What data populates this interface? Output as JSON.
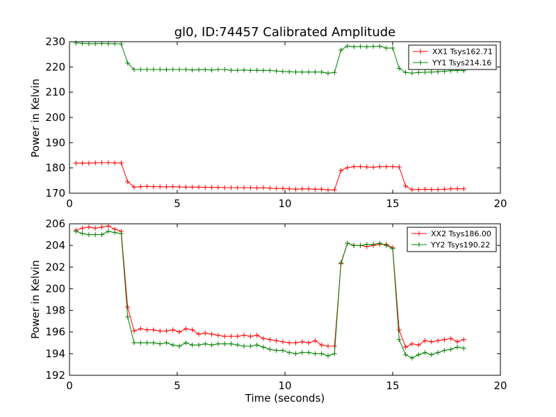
{
  "chart_data": [
    {
      "type": "line",
      "title": "gl0, ID:74457 Calibrated Amplitude",
      "xlabel": "",
      "ylabel": "Power in Kelvin",
      "xlim": [
        0,
        20
      ],
      "ylim": [
        170,
        230
      ],
      "xticks": [
        "0",
        "5",
        "10",
        "15",
        "20"
      ],
      "yticks": [
        "170",
        "180",
        "190",
        "200",
        "210",
        "220",
        "230"
      ],
      "grid": false,
      "legend_position": "top-right",
      "x": [
        0.3,
        0.6,
        0.9,
        1.2,
        1.5,
        1.8,
        2.1,
        2.4,
        2.7,
        3.0,
        3.3,
        3.6,
        3.9,
        4.2,
        4.5,
        4.8,
        5.1,
        5.4,
        5.7,
        6.0,
        6.3,
        6.6,
        6.9,
        7.2,
        7.5,
        7.8,
        8.1,
        8.4,
        8.7,
        9.0,
        9.3,
        9.6,
        9.9,
        10.2,
        10.5,
        10.8,
        11.1,
        11.4,
        11.7,
        12.0,
        12.3,
        12.6,
        12.9,
        13.2,
        13.5,
        13.8,
        14.1,
        14.4,
        14.7,
        15.0,
        15.3,
        15.6,
        15.9,
        16.2,
        16.5,
        16.8,
        17.1,
        17.4,
        17.7,
        18.0,
        18.3
      ],
      "series": [
        {
          "name": "XX1 Tsys162.71",
          "color": "#ff0000",
          "values": [
            181.9,
            181.9,
            181.9,
            182.0,
            182.1,
            182.1,
            182.0,
            182.0,
            174.5,
            172.4,
            172.6,
            172.7,
            172.6,
            172.6,
            172.5,
            172.6,
            172.5,
            172.4,
            172.4,
            172.4,
            172.3,
            172.3,
            172.3,
            172.2,
            172.2,
            172.2,
            172.2,
            172.2,
            172.1,
            172.2,
            172.0,
            171.9,
            171.9,
            171.7,
            171.6,
            171.7,
            171.7,
            171.6,
            171.6,
            171.3,
            171.3,
            179.0,
            180.1,
            180.5,
            180.5,
            180.4,
            180.3,
            180.5,
            180.5,
            180.5,
            180.4,
            172.8,
            171.4,
            171.5,
            171.6,
            171.5,
            171.5,
            171.6,
            171.7,
            171.8,
            171.7
          ]
        },
        {
          "name": "YY1 Tsys214.16",
          "color": "#008000",
          "values": [
            229.5,
            229.3,
            229.2,
            229.2,
            229.3,
            229.2,
            229.2,
            229.1,
            221.5,
            219.0,
            219.0,
            219.0,
            219.0,
            219.0,
            218.9,
            219.0,
            219.0,
            219.0,
            218.8,
            218.9,
            218.9,
            218.8,
            219.0,
            219.0,
            218.7,
            218.7,
            218.8,
            218.6,
            218.7,
            218.6,
            218.6,
            218.4,
            218.2,
            218.1,
            218.0,
            218.0,
            218.0,
            218.0,
            218.0,
            217.5,
            217.8,
            226.7,
            228.3,
            228.0,
            228.1,
            228.0,
            228.1,
            228.2,
            227.5,
            227.5,
            219.5,
            217.8,
            217.6,
            217.8,
            217.9,
            218.0,
            218.1,
            218.3,
            218.5,
            218.6,
            218.5
          ]
        }
      ]
    },
    {
      "type": "line",
      "title": "",
      "xlabel": "Time (seconds)",
      "ylabel": "Power in Kelvin",
      "xlim": [
        0,
        20
      ],
      "ylim": [
        192,
        206
      ],
      "xticks": [
        "0",
        "5",
        "10",
        "15",
        "20"
      ],
      "yticks": [
        "192",
        "194",
        "196",
        "198",
        "200",
        "202",
        "204",
        "206"
      ],
      "grid": false,
      "legend_position": "top-right",
      "x": [
        0.3,
        0.6,
        0.9,
        1.2,
        1.5,
        1.8,
        2.1,
        2.4,
        2.7,
        3.0,
        3.3,
        3.6,
        3.9,
        4.2,
        4.5,
        4.8,
        5.1,
        5.4,
        5.7,
        6.0,
        6.3,
        6.6,
        6.9,
        7.2,
        7.5,
        7.8,
        8.1,
        8.4,
        8.7,
        9.0,
        9.3,
        9.6,
        9.9,
        10.2,
        10.5,
        10.8,
        11.1,
        11.4,
        11.7,
        12.0,
        12.3,
        12.6,
        12.9,
        13.2,
        13.5,
        13.8,
        14.1,
        14.4,
        14.7,
        15.0,
        15.3,
        15.6,
        15.9,
        16.2,
        16.5,
        16.8,
        17.1,
        17.4,
        17.7,
        18.0,
        18.3
      ],
      "series": [
        {
          "name": "XX2 Tsys186.00",
          "color": "#ff0000",
          "values": [
            205.4,
            205.6,
            205.7,
            205.6,
            205.7,
            205.8,
            205.5,
            205.3,
            198.3,
            196.1,
            196.3,
            196.2,
            196.2,
            196.1,
            196.1,
            196.2,
            196.0,
            196.3,
            196.2,
            195.8,
            195.9,
            195.8,
            195.7,
            195.6,
            195.6,
            195.6,
            195.7,
            195.6,
            195.7,
            195.4,
            195.3,
            195.2,
            195.1,
            195.0,
            195.0,
            195.1,
            195.0,
            195.2,
            194.8,
            194.7,
            194.7,
            202.3,
            204.2,
            204.0,
            204.0,
            203.9,
            204.0,
            204.1,
            204.1,
            203.8,
            196.2,
            194.6,
            194.9,
            194.8,
            195.2,
            195.1,
            195.2,
            195.3,
            195.4,
            195.1,
            195.3
          ]
        },
        {
          "name": "YY2 Tsys190.22",
          "color": "#008000",
          "values": [
            205.3,
            205.1,
            205.0,
            205.0,
            205.0,
            205.3,
            205.2,
            205.1,
            197.4,
            195.0,
            195.0,
            195.0,
            195.0,
            194.9,
            195.0,
            194.8,
            194.7,
            195.0,
            194.8,
            194.8,
            194.9,
            194.8,
            194.9,
            194.9,
            194.9,
            194.8,
            194.7,
            194.7,
            194.8,
            194.6,
            194.4,
            194.3,
            194.3,
            194.1,
            194.0,
            194.1,
            194.1,
            194.0,
            194.0,
            193.8,
            194.0,
            202.4,
            204.2,
            204.0,
            204.0,
            204.1,
            204.1,
            204.2,
            204.0,
            203.7,
            195.3,
            193.9,
            193.6,
            193.9,
            194.1,
            193.9,
            194.1,
            194.3,
            194.4,
            194.6,
            194.5
          ]
        }
      ]
    }
  ]
}
